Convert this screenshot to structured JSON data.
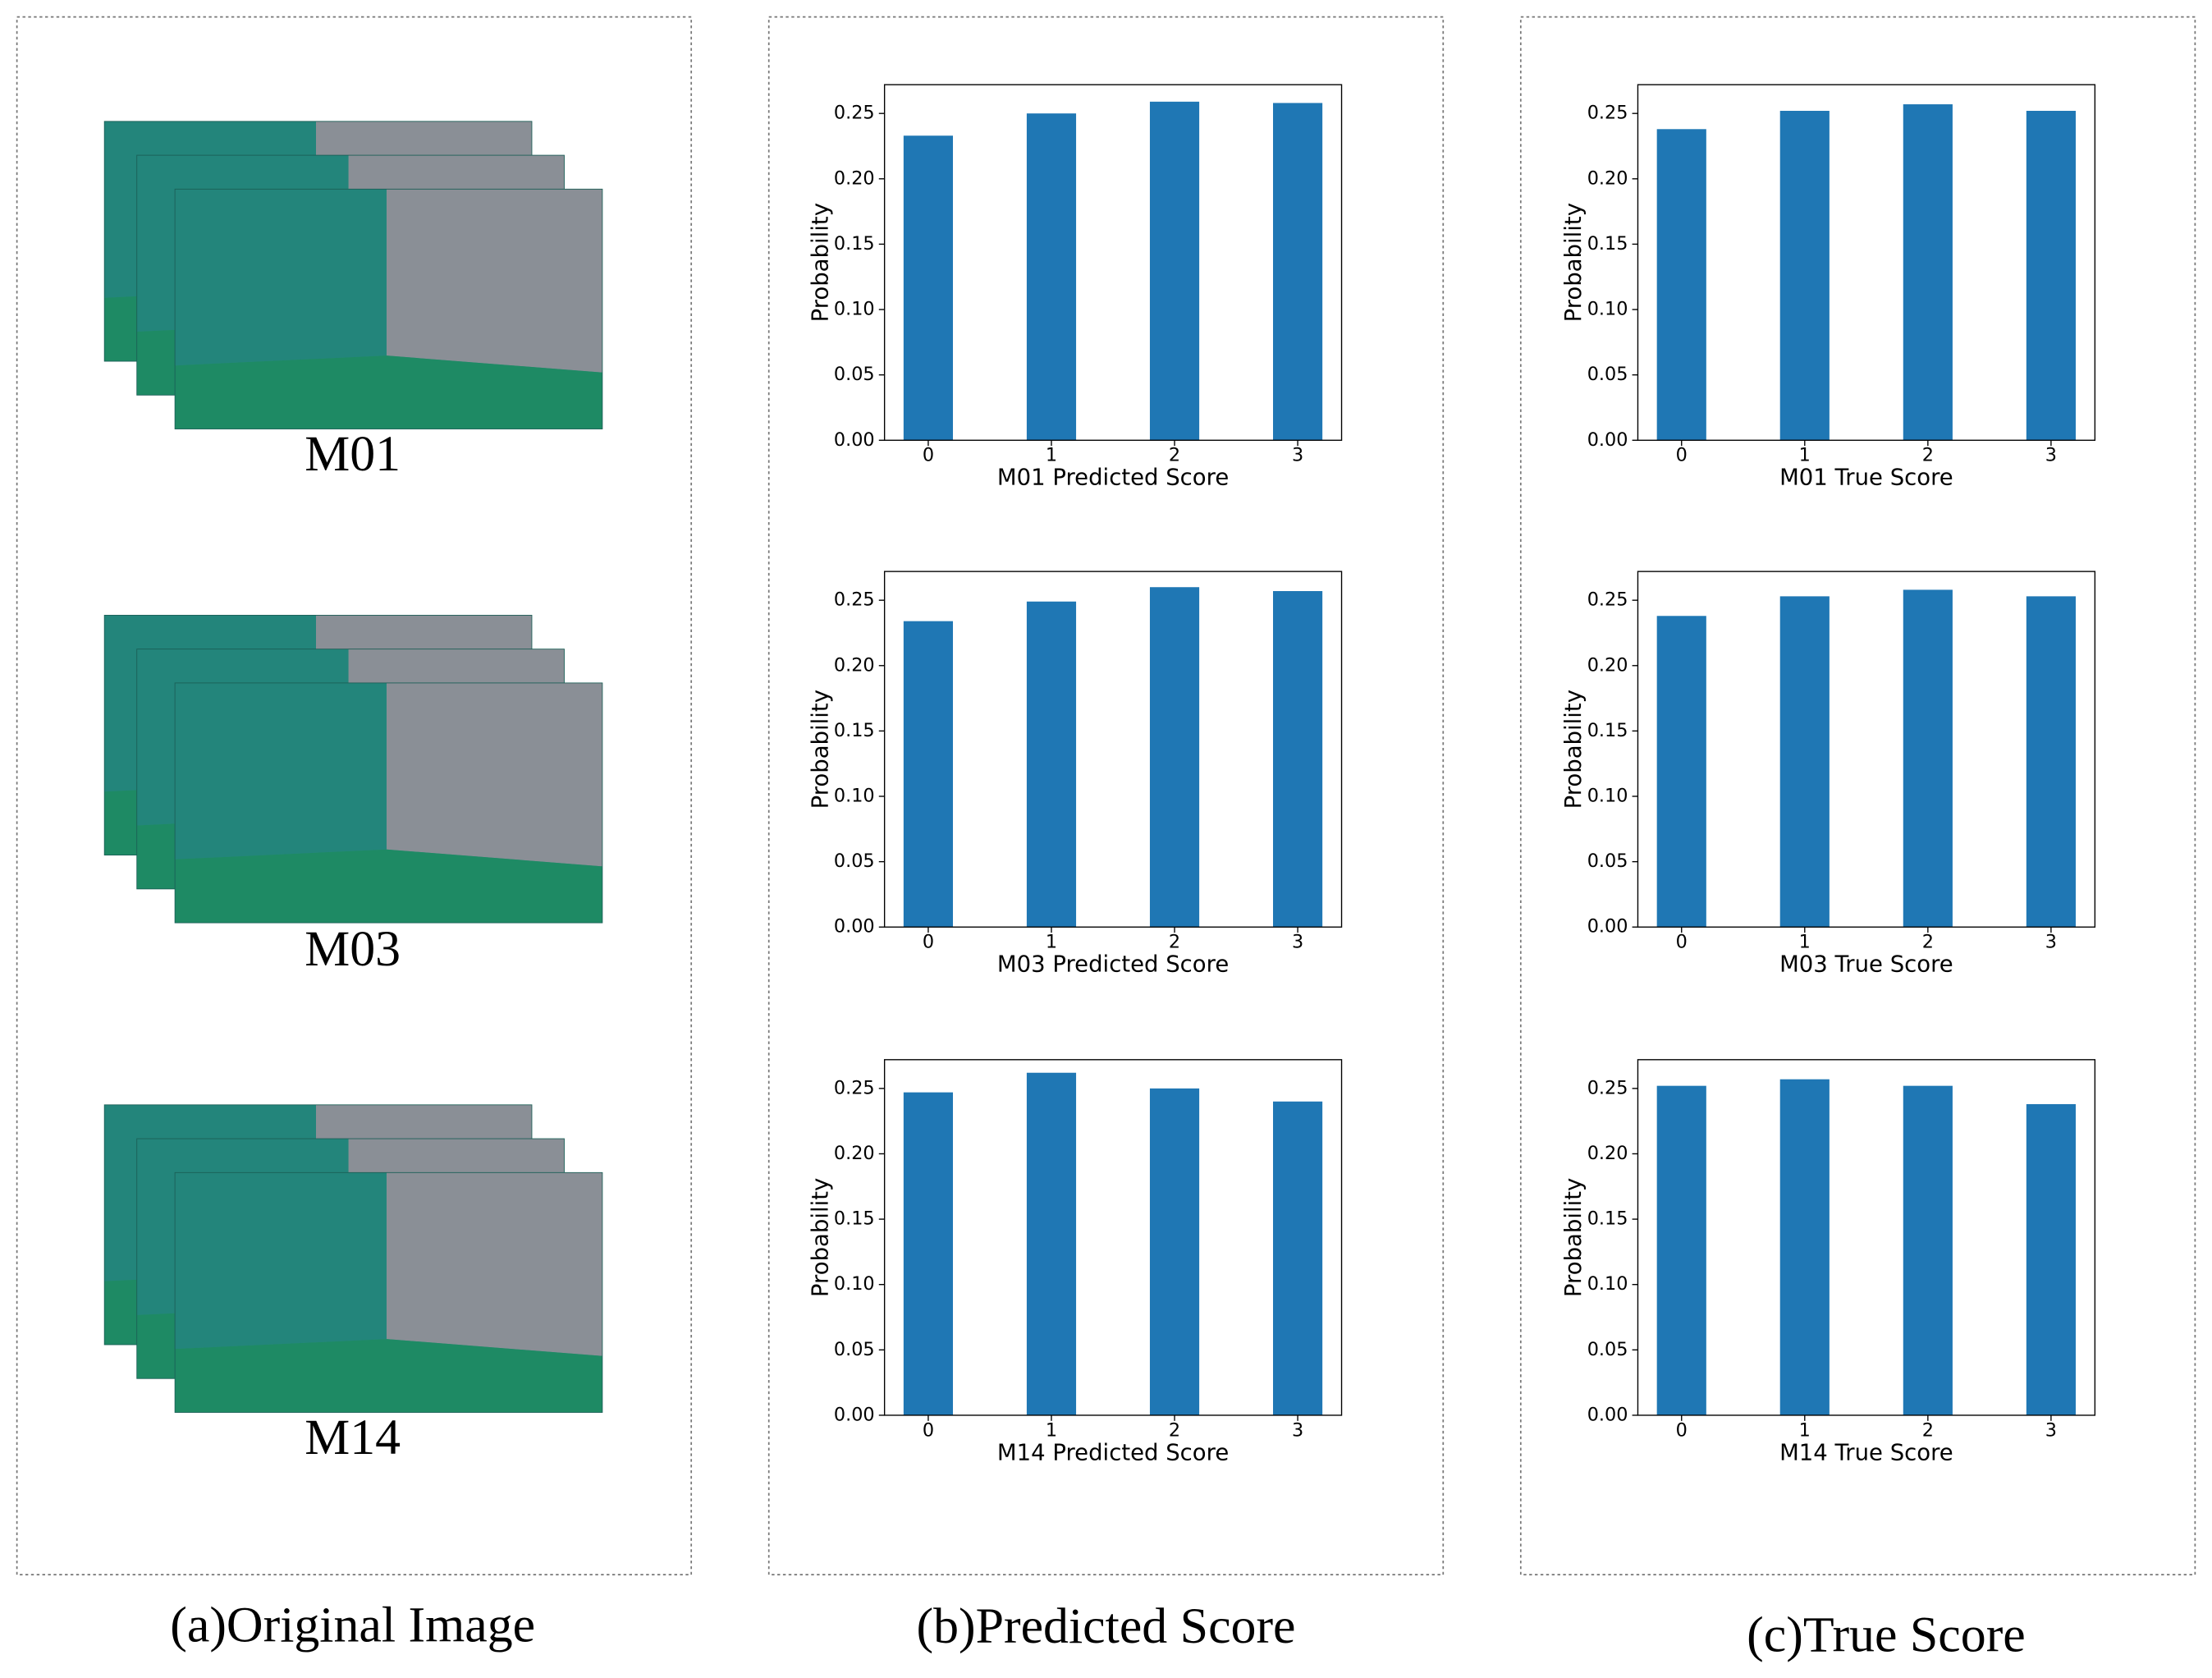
{
  "panels": [
    {
      "caption": "(a)Original Image"
    },
    {
      "caption": "(b)Predicted Score"
    },
    {
      "caption": "(c)True Score"
    }
  ],
  "images": [
    {
      "label": "M01"
    },
    {
      "label": "M03"
    },
    {
      "label": "M14"
    }
  ],
  "chart_data": [
    {
      "type": "bar",
      "xlabel": "M01 Predicted Score",
      "ylabel": "Probability",
      "categories": [
        "0",
        "1",
        "2",
        "3"
      ],
      "values": [
        0.233,
        0.25,
        0.259,
        0.258
      ],
      "color": "#1f77b4",
      "ylim": [
        0,
        0.272
      ],
      "yticks": [
        {
          "value": 0,
          "label": "0.00"
        },
        0.05,
        {
          "value": 0.1,
          "label": "0.10"
        },
        0.15,
        {
          "value": 0.2,
          "label": "0.20"
        },
        0.25
      ]
    },
    {
      "type": "bar",
      "xlabel": "M03 Predicted Score",
      "ylabel": "Probability",
      "categories": [
        "0",
        "1",
        "2",
        "3"
      ],
      "values": [
        0.234,
        0.249,
        0.26,
        0.257
      ],
      "color": "#1f77b4",
      "ylim": [
        0,
        0.272
      ],
      "yticks": [
        {
          "value": 0,
          "label": "0.00"
        },
        0.05,
        {
          "value": 0.1,
          "label": "0.10"
        },
        0.15,
        {
          "value": 0.2,
          "label": "0.20"
        },
        0.25
      ]
    },
    {
      "type": "bar",
      "xlabel": "M14 Predicted Score",
      "ylabel": "Probability",
      "categories": [
        "0",
        "1",
        "2",
        "3"
      ],
      "values": [
        0.247,
        0.262,
        0.25,
        0.24
      ],
      "color": "#1f77b4",
      "ylim": [
        0,
        0.272
      ],
      "yticks": [
        {
          "value": 0,
          "label": "0.00"
        },
        0.05,
        {
          "value": 0.1,
          "label": "0.10"
        },
        0.15,
        {
          "value": 0.2,
          "label": "0.20"
        },
        0.25
      ]
    },
    {
      "type": "bar",
      "xlabel": "M01 True Score",
      "ylabel": "Probability",
      "categories": [
        "0",
        "1",
        "2",
        "3"
      ],
      "values": [
        0.238,
        0.252,
        0.257,
        0.252
      ],
      "color": "#1f77b4",
      "ylim": [
        0,
        0.272
      ],
      "yticks": [
        {
          "value": 0,
          "label": "0.00"
        },
        0.05,
        {
          "value": 0.1,
          "label": "0.10"
        },
        0.15,
        {
          "value": 0.2,
          "label": "0.20"
        },
        0.25
      ]
    },
    {
      "type": "bar",
      "xlabel": "M03 True Score",
      "ylabel": "Probability",
      "categories": [
        "0",
        "1",
        "2",
        "3"
      ],
      "values": [
        0.238,
        0.253,
        0.258,
        0.253
      ],
      "color": "#1f77b4",
      "ylim": [
        0,
        0.272
      ],
      "yticks": [
        {
          "value": 0,
          "label": "0.00"
        },
        0.05,
        {
          "value": 0.1,
          "label": "0.10"
        },
        0.15,
        {
          "value": 0.2,
          "label": "0.20"
        },
        0.25
      ]
    },
    {
      "type": "bar",
      "xlabel": "M14 True Score",
      "ylabel": "Probability",
      "categories": [
        "0",
        "1",
        "2",
        "3"
      ],
      "values": [
        0.252,
        0.257,
        0.252,
        0.238
      ],
      "color": "#1f77b4",
      "ylim": [
        0,
        0.272
      ],
      "yticks": [
        {
          "value": 0,
          "label": "0.00"
        },
        0.05,
        {
          "value": 0.1,
          "label": "0.10"
        },
        0.15,
        {
          "value": 0.2,
          "label": "0.20"
        },
        0.25
      ]
    }
  ]
}
